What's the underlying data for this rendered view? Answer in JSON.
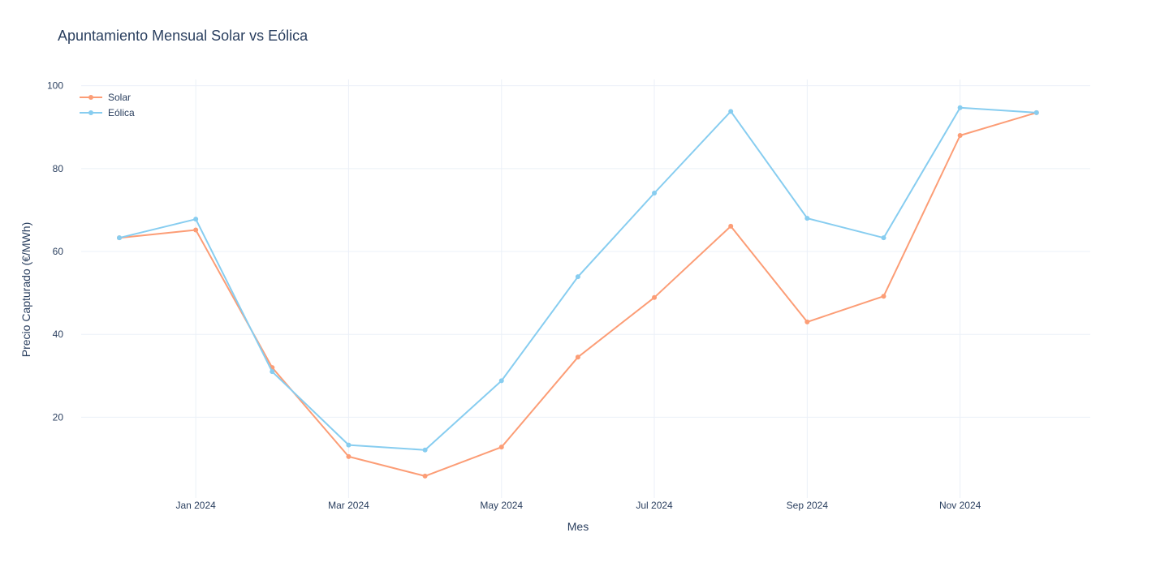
{
  "chart_data": {
    "type": "line",
    "title": "Apuntamiento Mensual Solar vs Eólica",
    "xlabel": "Mes",
    "ylabel": "Precio Capturado (€/MWh)",
    "x": [
      "2023-12",
      "2024-01",
      "2024-02",
      "2024-03",
      "2024-04",
      "2024-05",
      "2024-06",
      "2024-07",
      "2024-08",
      "2024-09",
      "2024-10",
      "2024-11",
      "2024-12"
    ],
    "x_tick_labels": [
      "Jan 2024",
      "Mar 2024",
      "May 2024",
      "Jul 2024",
      "Sep 2024",
      "Nov 2024"
    ],
    "y_ticks": [
      20,
      40,
      60,
      80,
      100
    ],
    "ylim": [
      0.5,
      101.5
    ],
    "grid": true,
    "legend_position": "top-left",
    "series": [
      {
        "name": "Solar",
        "color": "#fc9d76",
        "values": [
          63.3,
          65.2,
          32.0,
          10.5,
          5.8,
          12.8,
          34.5,
          48.9,
          66.1,
          43.0,
          49.2,
          88.0,
          93.5
        ]
      },
      {
        "name": "Eólica",
        "color": "#87cdf0",
        "values": [
          63.3,
          67.8,
          31.0,
          13.3,
          12.1,
          28.8,
          53.9,
          74.1,
          93.8,
          68.0,
          63.3,
          94.7,
          93.5
        ]
      }
    ]
  }
}
